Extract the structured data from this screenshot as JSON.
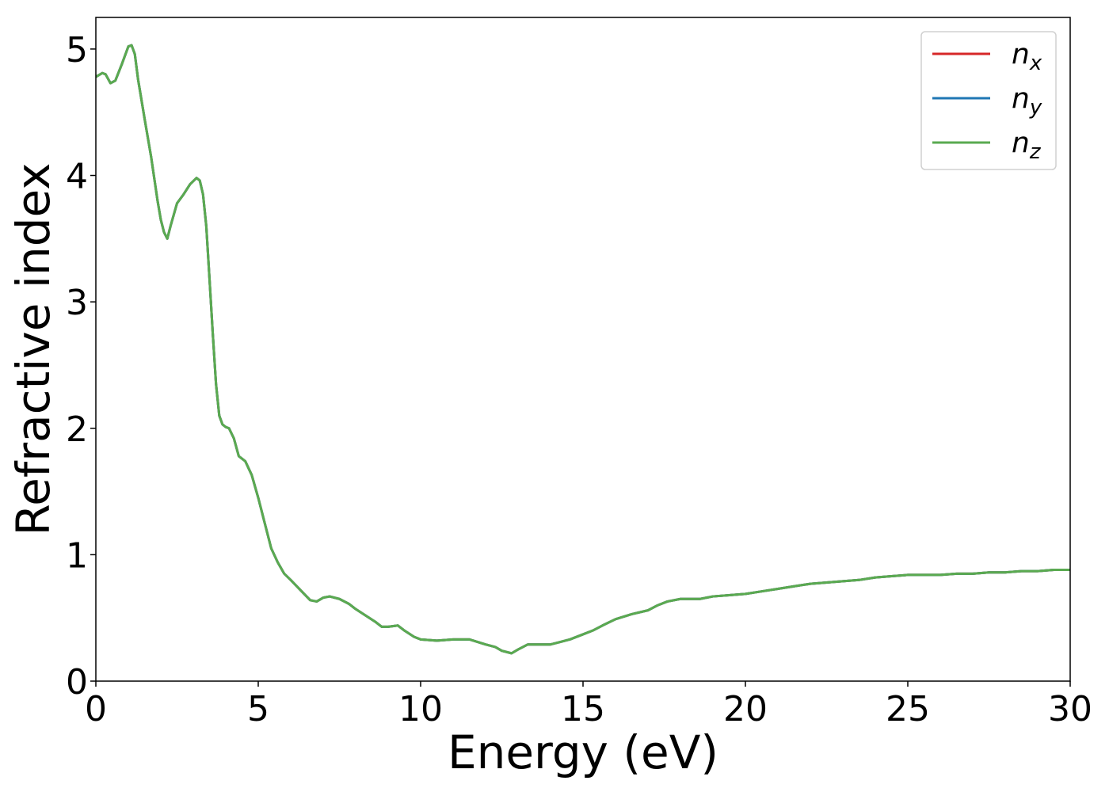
{
  "chart_data": {
    "type": "line",
    "title": "",
    "xlabel": "Energy (eV)",
    "ylabel": "Refractive index",
    "xlim": [
      0,
      30
    ],
    "ylim": [
      0,
      5.25
    ],
    "xticks": [
      0,
      5,
      10,
      15,
      20,
      25,
      30
    ],
    "yticks": [
      0,
      1,
      2,
      3,
      4,
      5
    ],
    "grid": false,
    "legend_position": "top-right",
    "x": [
      0.0,
      0.2,
      0.3,
      0.45,
      0.6,
      0.8,
      1.0,
      1.1,
      1.2,
      1.3,
      1.5,
      1.7,
      1.9,
      2.0,
      2.1,
      2.2,
      2.3,
      2.5,
      2.7,
      2.9,
      3.1,
      3.2,
      3.3,
      3.4,
      3.5,
      3.6,
      3.7,
      3.8,
      3.9,
      4.0,
      4.1,
      4.25,
      4.4,
      4.6,
      4.8,
      5.0,
      5.2,
      5.4,
      5.6,
      5.8,
      6.0,
      6.3,
      6.6,
      6.8,
      7.0,
      7.2,
      7.5,
      7.8,
      8.0,
      8.3,
      8.6,
      8.8,
      9.0,
      9.3,
      9.5,
      9.8,
      10.0,
      10.5,
      11.0,
      11.5,
      12.0,
      12.3,
      12.5,
      12.8,
      13.0,
      13.3,
      13.6,
      14.0,
      14.3,
      14.6,
      15.0,
      15.3,
      15.6,
      16.0,
      16.5,
      17.0,
      17.3,
      17.6,
      18.0,
      18.3,
      18.6,
      19.0,
      19.5,
      20.0,
      20.5,
      21.0,
      21.5,
      22.0,
      22.5,
      23.0,
      23.5,
      24.0,
      24.5,
      25.0,
      25.5,
      26.0,
      26.5,
      27.0,
      27.5,
      28.0,
      28.5,
      29.0,
      29.5,
      30.0
    ],
    "series": [
      {
        "name": "n_x",
        "color": "#d62728",
        "values": "same_as_nz"
      },
      {
        "name": "n_y",
        "color": "#1f77b4",
        "values": "same_as_nz"
      },
      {
        "name": "n_z",
        "color": "#5aaa50",
        "values": [
          4.78,
          4.81,
          4.8,
          4.73,
          4.75,
          4.88,
          5.02,
          5.03,
          4.96,
          4.76,
          4.45,
          4.15,
          3.8,
          3.65,
          3.55,
          3.5,
          3.6,
          3.78,
          3.85,
          3.93,
          3.98,
          3.96,
          3.85,
          3.6,
          3.18,
          2.75,
          2.35,
          2.1,
          2.03,
          2.01,
          2.0,
          1.92,
          1.78,
          1.74,
          1.63,
          1.45,
          1.25,
          1.05,
          0.94,
          0.85,
          0.8,
          0.72,
          0.64,
          0.63,
          0.66,
          0.67,
          0.65,
          0.61,
          0.57,
          0.52,
          0.47,
          0.43,
          0.43,
          0.44,
          0.4,
          0.35,
          0.33,
          0.32,
          0.33,
          0.33,
          0.29,
          0.27,
          0.24,
          0.22,
          0.25,
          0.29,
          0.29,
          0.29,
          0.31,
          0.33,
          0.37,
          0.4,
          0.44,
          0.49,
          0.53,
          0.56,
          0.6,
          0.63,
          0.65,
          0.65,
          0.65,
          0.67,
          0.68,
          0.69,
          0.71,
          0.73,
          0.75,
          0.77,
          0.78,
          0.79,
          0.8,
          0.82,
          0.83,
          0.84,
          0.84,
          0.84,
          0.85,
          0.85,
          0.86,
          0.86,
          0.87,
          0.87,
          0.88,
          0.88
        ]
      }
    ]
  },
  "legend": {
    "items": [
      {
        "base": "n",
        "sub": "x",
        "color": "#d62728"
      },
      {
        "base": "n",
        "sub": "y",
        "color": "#1f77b4"
      },
      {
        "base": "n",
        "sub": "z",
        "color": "#5aaa50"
      }
    ]
  }
}
